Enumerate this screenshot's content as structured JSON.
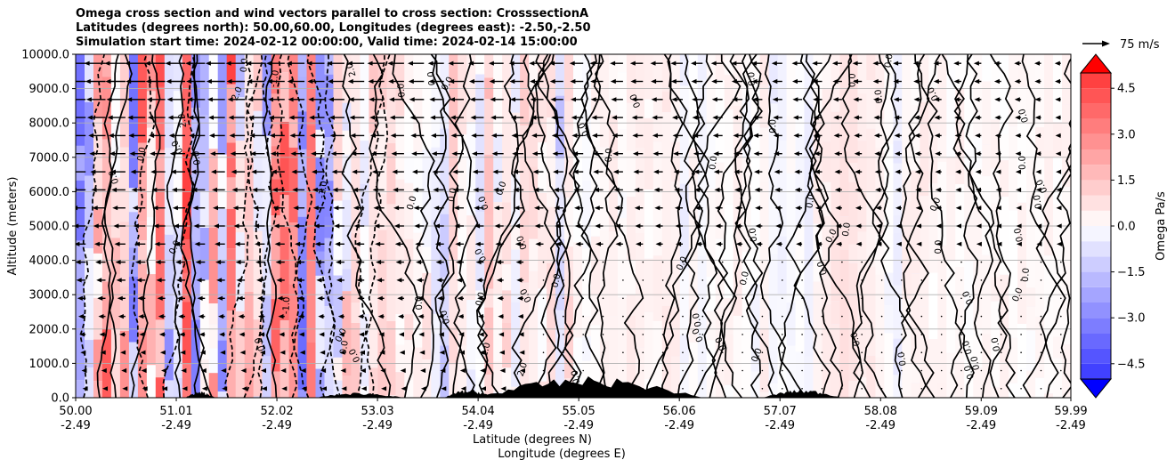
{
  "chart_data": {
    "type": "heatmap",
    "title_lines": [
      "Omega cross section and wind vectors parallel to cross section: CrosssectionA",
      "Latitudes (degrees north): 50.00,60.00, Longitudes (degrees east): -2.50,-2.50",
      "Simulation start time: 2024-02-12 00:00:00, Valid time: 2024-02-14 15:00:00"
    ],
    "ylabel": "Altitude (meters)",
    "xlabel_lat": "Latitude (degrees N)",
    "xlabel_lon": "Longitude (degrees E)",
    "ylim": [
      0,
      10000
    ],
    "y_ticks": [
      "0.0",
      "1000.0",
      "2000.0",
      "3000.0",
      "4000.0",
      "5000.0",
      "6000.0",
      "7000.0",
      "8000.0",
      "9000.0",
      "10000.0"
    ],
    "x_ticks_lat": [
      "50.00",
      "51.01",
      "52.02",
      "53.03",
      "54.04",
      "55.05",
      "56.06",
      "57.07",
      "58.08",
      "59.09",
      "59.99"
    ],
    "x_ticks_lon": [
      "-2.49",
      "-2.49",
      "-2.49",
      "-2.49",
      "-2.49",
      "-2.49",
      "-2.49",
      "-2.49",
      "-2.49",
      "-2.49",
      "-2.49"
    ],
    "colorbar": {
      "label": "Omega Pa/s",
      "range": [
        -5,
        5
      ],
      "ticks": [
        "4.5",
        "3.0",
        "1.5",
        "0.0",
        "−1.5",
        "−3.0",
        "−4.5"
      ],
      "tick_values": [
        4.5,
        3.0,
        1.5,
        0.0,
        -1.5,
        -3.0,
        -4.5
      ],
      "levels": 20
    },
    "quiver_key": "75 m/s",
    "contour_label": "0.0",
    "contour_labels_other": [
      "-1.0",
      "1.0",
      "2.0",
      "-2.0"
    ],
    "colors": {
      "positive": "#ff0000",
      "negative": "#0000ff",
      "contour": "#000000",
      "terrain": "#000000"
    }
  }
}
